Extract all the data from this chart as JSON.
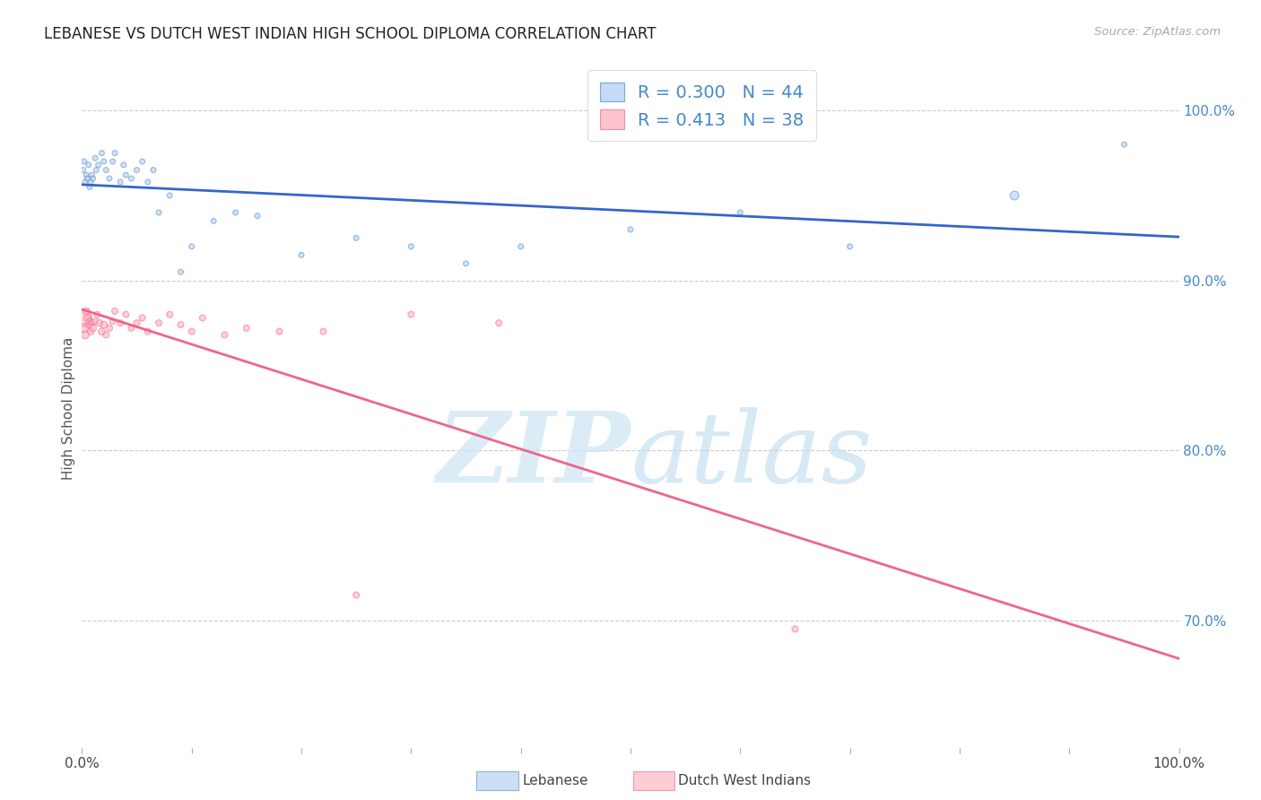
{
  "title": "LEBANESE VS DUTCH WEST INDIAN HIGH SCHOOL DIPLOMA CORRELATION CHART",
  "source": "Source: ZipAtlas.com",
  "ylabel": "High School Diploma",
  "legend_label1": "Lebanese",
  "legend_label2": "Dutch West Indians",
  "R_blue": 0.3,
  "N_blue": 44,
  "R_pink": 0.413,
  "N_pink": 38,
  "blue_fill": "#aaccee",
  "blue_edge": "#5588cc",
  "pink_fill": "#ffaabb",
  "pink_edge": "#ee6688",
  "blue_line": "#3366cc",
  "pink_line": "#ee6688",
  "right_tick_color": "#4488cc",
  "grid_color": "#cccccc",
  "ytick_vals": [
    1.0,
    0.9,
    0.8,
    0.7
  ],
  "ytick_labels": [
    "100.0%",
    "90.0%",
    "80.0%",
    "70.0%"
  ],
  "blue_x": [
    0.001,
    0.002,
    0.003,
    0.004,
    0.005,
    0.006,
    0.007,
    0.008,
    0.009,
    0.01,
    0.012,
    0.013,
    0.015,
    0.018,
    0.02,
    0.022,
    0.025,
    0.028,
    0.03,
    0.035,
    0.038,
    0.04,
    0.045,
    0.05,
    0.055,
    0.06,
    0.065,
    0.07,
    0.08,
    0.09,
    0.1,
    0.12,
    0.14,
    0.16,
    0.2,
    0.25,
    0.3,
    0.35,
    0.4,
    0.5,
    0.6,
    0.7,
    0.85,
    0.95
  ],
  "blue_y": [
    0.965,
    0.97,
    0.958,
    0.962,
    0.96,
    0.968,
    0.955,
    0.958,
    0.962,
    0.96,
    0.972,
    0.965,
    0.968,
    0.975,
    0.97,
    0.965,
    0.96,
    0.97,
    0.975,
    0.958,
    0.968,
    0.962,
    0.96,
    0.965,
    0.97,
    0.958,
    0.965,
    0.94,
    0.95,
    0.905,
    0.92,
    0.935,
    0.94,
    0.938,
    0.915,
    0.925,
    0.92,
    0.91,
    0.92,
    0.93,
    0.94,
    0.92,
    0.95,
    0.98
  ],
  "blue_size": [
    18,
    18,
    18,
    18,
    18,
    18,
    18,
    18,
    18,
    18,
    18,
    18,
    18,
    18,
    18,
    18,
    18,
    18,
    18,
    18,
    18,
    18,
    18,
    18,
    18,
    18,
    18,
    18,
    18,
    18,
    18,
    18,
    18,
    18,
    18,
    18,
    18,
    18,
    18,
    18,
    18,
    18,
    50,
    18
  ],
  "pink_x": [
    0.001,
    0.002,
    0.003,
    0.004,
    0.005,
    0.006,
    0.007,
    0.008,
    0.009,
    0.01,
    0.012,
    0.014,
    0.016,
    0.018,
    0.02,
    0.022,
    0.025,
    0.028,
    0.03,
    0.035,
    0.04,
    0.045,
    0.05,
    0.055,
    0.06,
    0.07,
    0.08,
    0.09,
    0.1,
    0.11,
    0.13,
    0.15,
    0.18,
    0.22,
    0.25,
    0.3,
    0.38,
    0.65
  ],
  "pink_y": [
    0.878,
    0.872,
    0.868,
    0.882,
    0.878,
    0.874,
    0.876,
    0.87,
    0.875,
    0.872,
    0.876,
    0.88,
    0.875,
    0.87,
    0.874,
    0.868,
    0.872,
    0.876,
    0.882,
    0.875,
    0.88,
    0.872,
    0.875,
    0.878,
    0.87,
    0.875,
    0.88,
    0.874,
    0.87,
    0.878,
    0.868,
    0.872,
    0.87,
    0.87,
    0.715,
    0.88,
    0.875,
    0.695
  ],
  "pink_size": [
    200,
    50,
    40,
    30,
    30,
    25,
    25,
    30,
    25,
    30,
    25,
    25,
    30,
    30,
    30,
    25,
    25,
    25,
    25,
    25,
    25,
    25,
    25,
    25,
    25,
    25,
    25,
    25,
    25,
    25,
    25,
    25,
    25,
    25,
    25,
    25,
    25,
    25
  ]
}
